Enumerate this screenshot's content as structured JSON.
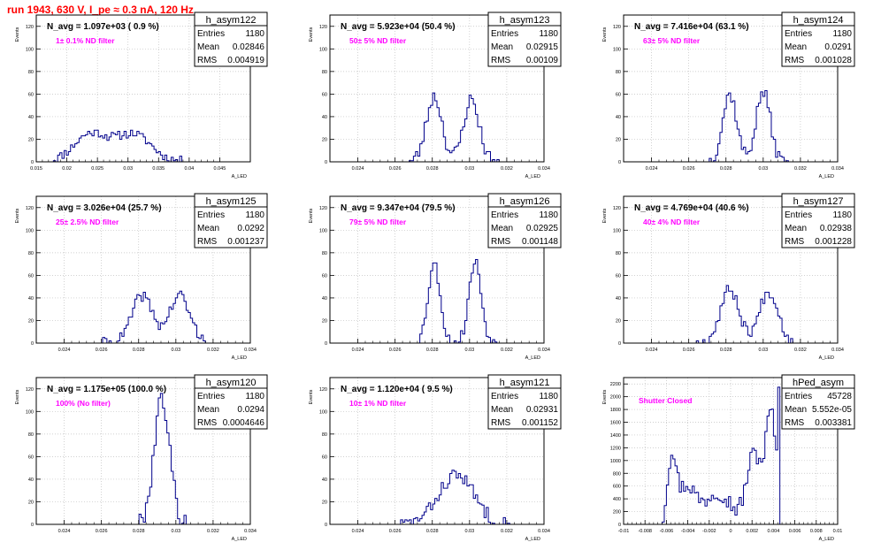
{
  "title": "run 1943,   630 V, I_pe ≈ 0.3 nA, 120 Hz",
  "colors": {
    "title": "#ff0000",
    "histogram": "#00008b",
    "annotation": "#ff00ff",
    "grid": "#c0c0c0"
  },
  "stats_labels": {
    "entries": "Entries",
    "mean": "Mean",
    "rms": "RMS"
  },
  "chart_data": [
    {
      "type": "histogram",
      "name": "h_asym122",
      "navg": "N_avg = 1.097e+03 ( 0.9 %)",
      "annotation": "1± 0.1% ND filter",
      "stats": {
        "entries": "1180",
        "mean": "0.02846",
        "rms": "0.004919"
      },
      "xlabel": "A_LED",
      "ylabel": "Events",
      "xlim": [
        0.015,
        0.05
      ],
      "ylim": [
        0,
        130
      ],
      "xticks": [
        0.015,
        0.02,
        0.025,
        0.03,
        0.035,
        0.04,
        0.045
      ],
      "xtick_labels": [
        "0.015",
        "0.02",
        "0.025",
        "0.03",
        "0.035",
        "0.04",
        "0.045"
      ],
      "yticks": [
        0,
        20,
        40,
        60,
        80,
        100,
        120
      ],
      "ytick_labels": [
        "0",
        "20",
        "40",
        "60",
        "80",
        "100",
        "120"
      ],
      "grid": true,
      "peaks": [
        {
          "mu": 0.024,
          "sigma": 0.0028,
          "amp": 25
        },
        {
          "mu": 0.031,
          "sigma": 0.0028,
          "amp": 24
        }
      ],
      "support": [
        0.017,
        0.039
      ],
      "noise": 4,
      "seed": 11
    },
    {
      "type": "histogram",
      "name": "h_asym123",
      "navg": "N_avg = 5.923e+04 (50.4 %)",
      "annotation": "50± 5% ND filter",
      "stats": {
        "entries": "1180",
        "mean": "0.02915",
        "rms": "0.00109"
      },
      "xlabel": "A_LED",
      "ylabel": "Events",
      "xlim": [
        0.0225,
        0.034
      ],
      "ylim": [
        0,
        130
      ],
      "xticks": [
        0.024,
        0.026,
        0.028,
        0.03,
        0.032,
        0.034
      ],
      "xtick_labels": [
        "0.024",
        "0.026",
        "0.028",
        "0.03",
        "0.032",
        "0.034"
      ],
      "yticks": [
        0,
        20,
        40,
        60,
        80,
        100,
        120
      ],
      "ytick_labels": [
        "0",
        "20",
        "40",
        "60",
        "80",
        "100",
        "120"
      ],
      "grid": true,
      "peaks": [
        {
          "mu": 0.0281,
          "sigma": 0.00042,
          "amp": 58
        },
        {
          "mu": 0.0301,
          "sigma": 0.00042,
          "amp": 55
        }
      ],
      "support": [
        0.0265,
        0.0316
      ],
      "noise": 6,
      "seed": 23
    },
    {
      "type": "histogram",
      "name": "h_asym124",
      "navg": "N_avg = 7.416e+04 (63.1 %)",
      "annotation": "63± 5% ND filter",
      "stats": {
        "entries": "1180",
        "mean": "0.0291",
        "rms": "0.001028"
      },
      "xlabel": "A_LED",
      "ylabel": "Events",
      "xlim": [
        0.0225,
        0.034
      ],
      "ylim": [
        0,
        130
      ],
      "xticks": [
        0.024,
        0.026,
        0.028,
        0.03,
        0.032,
        0.034
      ],
      "xtick_labels": [
        "0.024",
        "0.026",
        "0.028",
        "0.03",
        "0.032",
        "0.034"
      ],
      "yticks": [
        0,
        20,
        40,
        60,
        80,
        100,
        120
      ],
      "ytick_labels": [
        "0",
        "20",
        "40",
        "60",
        "80",
        "100",
        "120"
      ],
      "grid": true,
      "peaks": [
        {
          "mu": 0.0282,
          "sigma": 0.00038,
          "amp": 60
        },
        {
          "mu": 0.03,
          "sigma": 0.00038,
          "amp": 62
        }
      ],
      "support": [
        0.027,
        0.0313
      ],
      "noise": 6,
      "seed": 37
    },
    {
      "type": "histogram",
      "name": "h_asym125",
      "navg": "N_avg = 3.026e+04 (25.7 %)",
      "annotation": "25± 2.5% ND filter",
      "stats": {
        "entries": "1180",
        "mean": "0.0292",
        "rms": "0.001237"
      },
      "xlabel": "A_LED",
      "ylabel": "Events",
      "xlim": [
        0.0225,
        0.034
      ],
      "ylim": [
        0,
        130
      ],
      "xticks": [
        0.024,
        0.026,
        0.028,
        0.03,
        0.032,
        0.034
      ],
      "xtick_labels": [
        "0.024",
        "0.026",
        "0.028",
        "0.03",
        "0.032",
        "0.034"
      ],
      "yticks": [
        0,
        20,
        40,
        60,
        80,
        100,
        120
      ],
      "ytick_labels": [
        "0",
        "20",
        "40",
        "60",
        "80",
        "100",
        "120"
      ],
      "grid": true,
      "peaks": [
        {
          "mu": 0.0282,
          "sigma": 0.00055,
          "amp": 42
        },
        {
          "mu": 0.0302,
          "sigma": 0.00055,
          "amp": 42
        }
      ],
      "support": [
        0.026,
        0.0318
      ],
      "noise": 5,
      "seed": 41
    },
    {
      "type": "histogram",
      "name": "h_asym126",
      "navg": "N_avg = 9.347e+04 (79.5 %)",
      "annotation": "79± 5% ND filter",
      "stats": {
        "entries": "1180",
        "mean": "0.02925",
        "rms": "0.001148"
      },
      "xlabel": "A_LED",
      "ylabel": "Events",
      "xlim": [
        0.0225,
        0.034
      ],
      "ylim": [
        0,
        130
      ],
      "xticks": [
        0.024,
        0.026,
        0.028,
        0.03,
        0.032,
        0.034
      ],
      "xtick_labels": [
        "0.024",
        "0.026",
        "0.028",
        "0.03",
        "0.032",
        "0.034"
      ],
      "yticks": [
        0,
        20,
        40,
        60,
        80,
        100,
        120
      ],
      "ytick_labels": [
        "0",
        "20",
        "40",
        "60",
        "80",
        "100",
        "120"
      ],
      "grid": true,
      "peaks": [
        {
          "mu": 0.0281,
          "sigma": 0.00033,
          "amp": 70
        },
        {
          "mu": 0.0303,
          "sigma": 0.00033,
          "amp": 72
        }
      ],
      "support": [
        0.027,
        0.0316
      ],
      "noise": 5,
      "seed": 53
    },
    {
      "type": "histogram",
      "name": "h_asym127",
      "navg": "N_avg = 4.769e+04 (40.6 %)",
      "annotation": "40± 4% ND filter",
      "stats": {
        "entries": "1180",
        "mean": "0.02938",
        "rms": "0.001228"
      },
      "xlabel": "A_LED",
      "ylabel": "Events",
      "xlim": [
        0.0225,
        0.034
      ],
      "ylim": [
        0,
        130
      ],
      "xticks": [
        0.024,
        0.026,
        0.028,
        0.03,
        0.032,
        0.034
      ],
      "xtick_labels": [
        "0.024",
        "0.026",
        "0.028",
        "0.03",
        "0.032",
        "0.034"
      ],
      "yticks": [
        0,
        20,
        40,
        60,
        80,
        100,
        120
      ],
      "ytick_labels": [
        "0",
        "20",
        "40",
        "60",
        "80",
        "100",
        "120"
      ],
      "grid": true,
      "peaks": [
        {
          "mu": 0.0282,
          "sigma": 0.0005,
          "amp": 48
        },
        {
          "mu": 0.0303,
          "sigma": 0.0005,
          "amp": 46
        }
      ],
      "support": [
        0.0262,
        0.032
      ],
      "noise": 5,
      "seed": 67
    },
    {
      "type": "histogram",
      "name": "h_asym120",
      "navg": "N_avg = 1.175e+05 (100.0 %)",
      "annotation": "100% (No filter)",
      "stats": {
        "entries": "1180",
        "mean": "0.0294",
        "rms": "0.0004646"
      },
      "xlabel": "A_LED",
      "ylabel": "Events",
      "xlim": [
        0.0225,
        0.034
      ],
      "ylim": [
        0,
        130
      ],
      "xticks": [
        0.024,
        0.026,
        0.028,
        0.03,
        0.032,
        0.034
      ],
      "xtick_labels": [
        "0.024",
        "0.026",
        "0.028",
        "0.03",
        "0.032",
        "0.034"
      ],
      "yticks": [
        0,
        20,
        40,
        60,
        80,
        100,
        120
      ],
      "ytick_labels": [
        "0",
        "20",
        "40",
        "60",
        "80",
        "100",
        "120"
      ],
      "grid": true,
      "peaks": [
        {
          "mu": 0.02925,
          "sigma": 0.00042,
          "amp": 112
        }
      ],
      "support": [
        0.0278,
        0.0308
      ],
      "noise": 8,
      "seed": 79
    },
    {
      "type": "histogram",
      "name": "h_asym121",
      "navg": "N_avg = 1.120e+04 ( 9.5 %)",
      "annotation": "10± 1% ND filter",
      "stats": {
        "entries": "1180",
        "mean": "0.02931",
        "rms": "0.001152"
      },
      "xlabel": "A_LED",
      "ylabel": "Events",
      "xlim": [
        0.0225,
        0.034
      ],
      "ylim": [
        0,
        130
      ],
      "xticks": [
        0.024,
        0.026,
        0.028,
        0.03,
        0.032,
        0.034
      ],
      "xtick_labels": [
        "0.024",
        "0.026",
        "0.028",
        "0.03",
        "0.032",
        "0.034"
      ],
      "yticks": [
        0,
        20,
        40,
        60,
        80,
        100,
        120
      ],
      "ytick_labels": [
        "0",
        "20",
        "40",
        "60",
        "80",
        "100",
        "120"
      ],
      "grid": true,
      "peaks": [
        {
          "mu": 0.0293,
          "sigma": 0.00095,
          "amp": 44
        }
      ],
      "support": [
        0.0262,
        0.0322
      ],
      "noise": 6,
      "seed": 83
    },
    {
      "type": "histogram",
      "name": "hPed_asym",
      "navg": "",
      "annotation": "Shutter Closed",
      "stats": {
        "entries": "45728",
        "mean": "5.552e-05",
        "rms": "0.003381"
      },
      "xlabel": "A_LED",
      "ylabel": "Events",
      "xlim": [
        -0.01,
        0.01
      ],
      "ylim": [
        0,
        2300
      ],
      "xticks": [
        -0.01,
        -0.008,
        -0.006,
        -0.004,
        -0.002,
        0,
        0.002,
        0.004,
        0.006,
        0.008,
        0.01
      ],
      "xtick_labels": [
        "-0.01",
        "-0.008",
        "-0.006",
        "-0.004",
        "-0.002",
        "0",
        "0.002",
        "0.004",
        "0.006",
        "0.008",
        "0.01"
      ],
      "yticks": [
        0,
        200,
        400,
        600,
        800,
        1000,
        1200,
        1400,
        1600,
        1800,
        2000,
        2200
      ],
      "ytick_labels": [
        "0",
        "200",
        "400",
        "600",
        "800",
        "1000",
        "1200",
        "1400",
        "1600",
        "1800",
        "2000",
        "2200"
      ],
      "grid": true,
      "peaks": [
        {
          "mu": -0.0055,
          "sigma": 0.0004,
          "amp": 1050
        },
        {
          "mu": -0.0041,
          "sigma": 0.0008,
          "amp": 600
        },
        {
          "mu": -0.0012,
          "sigma": 0.0012,
          "amp": 520
        },
        {
          "mu": 0.0022,
          "sigma": 0.0007,
          "amp": 1100
        },
        {
          "mu": 0.0038,
          "sigma": 0.0005,
          "amp": 1700
        }
      ],
      "support": [
        -0.0066,
        0.0046
      ],
      "noise": 140,
      "seed": 97,
      "spikes": [
        {
          "x": 0.0044,
          "value": 2150
        }
      ]
    }
  ]
}
